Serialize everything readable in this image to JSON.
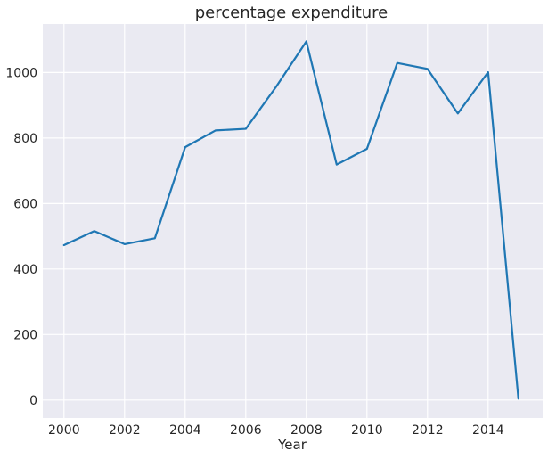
{
  "chart_data": {
    "type": "line",
    "title": "percentage expenditure",
    "xlabel": "Year",
    "ylabel": "",
    "x": [
      2000,
      2001,
      2002,
      2003,
      2004,
      2005,
      2006,
      2007,
      2008,
      2009,
      2010,
      2011,
      2012,
      2013,
      2014,
      2015
    ],
    "series": [
      {
        "values": [
          473,
          516,
          476,
          494,
          772,
          823,
          828,
          956,
          1095,
          719,
          767,
          1029,
          1011,
          875,
          1001,
          4
        ],
        "color": "#1f77b4"
      }
    ],
    "xlim": [
      1999.3,
      2015.8
    ],
    "ylim": [
      -55,
      1148
    ],
    "xticks": [
      2000,
      2002,
      2004,
      2006,
      2008,
      2010,
      2012,
      2014
    ],
    "yticks": [
      0,
      200,
      400,
      600,
      800,
      1000
    ],
    "grid": true,
    "legend": "none"
  }
}
